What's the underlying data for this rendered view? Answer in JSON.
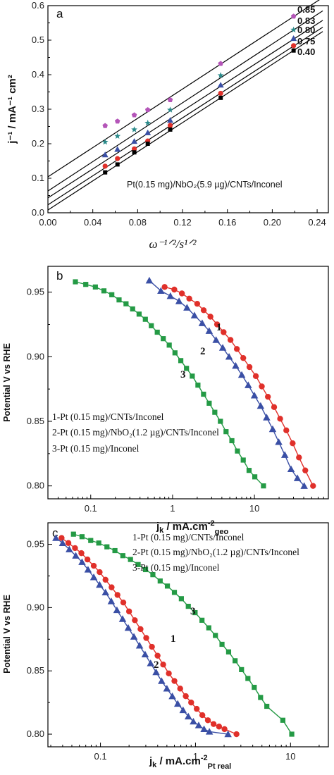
{
  "chart_data": [
    {
      "panel": "a",
      "type": "scatter",
      "xlabel": "ω^{-1/2}/s^{1/2}",
      "ylabel": "j^{-1} / mA^{-1} cm^{2}",
      "xlim": [
        0,
        0.25
      ],
      "ylim": [
        0,
        0.6
      ],
      "xticks": [
        "0.00",
        "0.04",
        "0.08",
        "0.12",
        "0.16",
        "0.20",
        "0.24"
      ],
      "yticks": [
        "0.0",
        "0.1",
        "0.2",
        "0.3",
        "0.4",
        "0.5",
        "0.6"
      ],
      "annotation": "Pt(0.15 mg)/NbO2(5.9 µg)/CNTs/Inconel",
      "x": [
        0.051,
        0.062,
        0.077,
        0.089,
        0.109,
        0.154,
        0.219
      ],
      "series": [
        {
          "name": "0.85",
          "marker": "pentagon",
          "color": "#b455b8",
          "values": [
            0.252,
            0.265,
            0.283,
            0.298,
            0.327,
            0.432,
            0.569
          ],
          "fit": {
            "intercept": 0.104,
            "slope": 2.12
          }
        },
        {
          "name": "0.83",
          "marker": "star",
          "color": "#2a8a8a",
          "values": [
            0.205,
            0.222,
            0.241,
            0.26,
            0.298,
            0.398,
            0.53
          ],
          "fit": {
            "intercept": 0.063,
            "slope": 2.13
          }
        },
        {
          "name": "0.80",
          "marker": "triangle",
          "color": "#3a4fa5",
          "values": [
            0.168,
            0.184,
            0.207,
            0.232,
            0.268,
            0.37,
            0.505
          ],
          "fit": {
            "intercept": 0.043,
            "slope": 2.1
          }
        },
        {
          "name": "0.75",
          "marker": "circle",
          "color": "#e0302a",
          "values": [
            0.135,
            0.157,
            0.185,
            0.208,
            0.253,
            0.346,
            0.484
          ],
          "fit": {
            "intercept": 0.023,
            "slope": 2.1
          }
        },
        {
          "name": "0.40",
          "marker": "square",
          "color": "#000000",
          "values": [
            0.117,
            0.14,
            0.175,
            0.2,
            0.241,
            0.333,
            0.47
          ],
          "fit": {
            "intercept": 0.008,
            "slope": 2.11
          }
        }
      ]
    },
    {
      "panel": "b",
      "type": "line",
      "xscale": "log",
      "xlabel": "jk / mA.cm-2geo",
      "ylabel": "Potential V vs RHE",
      "xlim": [
        0.03,
        80
      ],
      "ylim": [
        0.79,
        0.97
      ],
      "xticks": [
        "0.1",
        "1",
        "10"
      ],
      "yticks": [
        "0.80",
        "0.85",
        "0.90",
        "0.95"
      ],
      "legend": [
        "1-Pt (0.15 mg)/CNTs/Inconel",
        "2-Pt (0.15 mg)/NbO2(1.2 µg)/CNTs/Inconel",
        "3-Pt (0.15 mg)/Inconel"
      ],
      "series": [
        {
          "name": "1",
          "marker": "circle",
          "color": "#e0302a",
          "x": [
            0.8,
            1.05,
            1.3,
            1.6,
            2.0,
            2.4,
            2.9,
            3.5,
            4.2,
            5.1,
            6.1,
            7.3,
            8.7,
            10.4,
            12.3,
            14.6,
            17.4,
            20.6,
            24.5,
            29.3,
            35.0,
            41.8,
            52.0
          ],
          "y": [
            0.954,
            0.952,
            0.949,
            0.945,
            0.941,
            0.936,
            0.931,
            0.925,
            0.919,
            0.913,
            0.906,
            0.899,
            0.892,
            0.885,
            0.877,
            0.869,
            0.861,
            0.852,
            0.843,
            0.833,
            0.822,
            0.812,
            0.8
          ]
        },
        {
          "name": "2",
          "marker": "triangle",
          "color": "#3a4fa5",
          "x": [
            0.52,
            0.72,
            0.94,
            1.2,
            1.5,
            1.85,
            2.3,
            2.8,
            3.4,
            4.1,
            4.9,
            5.9,
            7.0,
            8.4,
            10.0,
            11.9,
            14.1,
            16.7,
            19.8,
            23.5,
            28.0,
            33.5,
            40.5
          ],
          "y": [
            0.959,
            0.951,
            0.947,
            0.943,
            0.938,
            0.932,
            0.926,
            0.92,
            0.913,
            0.907,
            0.9,
            0.893,
            0.886,
            0.878,
            0.87,
            0.862,
            0.853,
            0.844,
            0.834,
            0.824,
            0.813,
            0.806,
            0.8
          ]
        },
        {
          "name": "3",
          "marker": "square",
          "color": "#249a45",
          "x": [
            0.065,
            0.087,
            0.114,
            0.145,
            0.181,
            0.222,
            0.27,
            0.325,
            0.39,
            0.465,
            0.55,
            0.65,
            0.77,
            0.91,
            1.07,
            1.26,
            1.48,
            1.74,
            2.04,
            2.39,
            2.8,
            3.28,
            3.84,
            4.5,
            5.3,
            6.2,
            7.3,
            8.6,
            10.1,
            12.9
          ],
          "y": [
            0.958,
            0.956,
            0.954,
            0.951,
            0.948,
            0.944,
            0.941,
            0.937,
            0.933,
            0.929,
            0.924,
            0.919,
            0.914,
            0.909,
            0.903,
            0.897,
            0.891,
            0.885,
            0.878,
            0.871,
            0.864,
            0.857,
            0.85,
            0.842,
            0.835,
            0.827,
            0.82,
            0.812,
            0.807,
            0.8
          ]
        }
      ],
      "curve_labels": [
        "1",
        "2",
        "3"
      ]
    },
    {
      "panel": "c",
      "type": "line",
      "xscale": "log",
      "xlabel": "jk / mA.cm-2Pt real",
      "ylabel": "Potential V vs RHE",
      "xlim": [
        0.028,
        25
      ],
      "ylim": [
        0.79,
        0.967
      ],
      "xticks": [
        "0.1",
        "1",
        "10"
      ],
      "yticks": [
        "0.80",
        "0.85",
        "0.90",
        "0.95"
      ],
      "legend": [
        "1-Pt (0.15 mg)/CNTs/Inconel",
        "2-Pt (0.15 mg)/NbO2(1.2 µg)/CNTs/Inconel",
        "3-Pt (0.15 mg)/Inconel"
      ],
      "series": [
        {
          "name": "1",
          "marker": "circle",
          "color": "#e0302a",
          "x": [
            0.039,
            0.046,
            0.054,
            0.063,
            0.073,
            0.085,
            0.098,
            0.113,
            0.131,
            0.151,
            0.174,
            0.2,
            0.23,
            0.264,
            0.303,
            0.348,
            0.399,
            0.457,
            0.524,
            0.6,
            0.69,
            0.79,
            0.9,
            1.03,
            1.18,
            1.35,
            1.55,
            1.77,
            2.02,
            2.7
          ],
          "y": [
            0.955,
            0.951,
            0.947,
            0.943,
            0.938,
            0.933,
            0.928,
            0.922,
            0.916,
            0.91,
            0.904,
            0.897,
            0.89,
            0.883,
            0.876,
            0.869,
            0.862,
            0.855,
            0.848,
            0.842,
            0.836,
            0.83,
            0.825,
            0.82,
            0.815,
            0.811,
            0.808,
            0.806,
            0.804,
            0.8
          ]
        },
        {
          "name": "2",
          "marker": "triangle",
          "color": "#3a4fa5",
          "x": [
            0.034,
            0.04,
            0.047,
            0.055,
            0.064,
            0.074,
            0.085,
            0.098,
            0.113,
            0.13,
            0.149,
            0.171,
            0.196,
            0.225,
            0.258,
            0.295,
            0.337,
            0.385,
            0.44,
            0.5,
            0.57,
            0.65,
            0.74,
            0.84,
            0.95,
            1.08,
            1.23,
            1.4,
            2.2
          ],
          "y": [
            0.955,
            0.951,
            0.946,
            0.941,
            0.936,
            0.93,
            0.924,
            0.918,
            0.912,
            0.905,
            0.898,
            0.891,
            0.884,
            0.877,
            0.87,
            0.863,
            0.856,
            0.849,
            0.842,
            0.836,
            0.83,
            0.824,
            0.819,
            0.814,
            0.81,
            0.807,
            0.804,
            0.802,
            0.8
          ]
        },
        {
          "name": "3",
          "marker": "square",
          "color": "#249a45",
          "x": [
            0.052,
            0.064,
            0.079,
            0.096,
            0.117,
            0.142,
            0.172,
            0.207,
            0.249,
            0.298,
            0.356,
            0.425,
            0.506,
            0.6,
            0.71,
            0.84,
            0.99,
            1.17,
            1.38,
            1.62,
            1.9,
            2.23,
            2.61,
            3.05,
            3.56,
            4.15,
            4.84,
            5.63,
            8.3,
            10.3
          ],
          "y": [
            0.958,
            0.956,
            0.953,
            0.951,
            0.948,
            0.945,
            0.941,
            0.938,
            0.934,
            0.93,
            0.926,
            0.921,
            0.917,
            0.912,
            0.907,
            0.901,
            0.896,
            0.89,
            0.884,
            0.878,
            0.871,
            0.865,
            0.858,
            0.851,
            0.844,
            0.837,
            0.829,
            0.822,
            0.811,
            0.8
          ]
        }
      ],
      "curve_labels": [
        "1",
        "2",
        "3"
      ]
    }
  ],
  "labels": {
    "a": {
      "panel_letter": "a",
      "ylabel": "j⁻¹ / mA⁻¹ cm²",
      "xlabel": "ω⁻¹ᐟ²/s¹ᐟ²",
      "annotation": "Pt(0.15 mg)/NbO₂(5.9 µg)/CNTs/Inconel",
      "series_labels": [
        "0.85",
        "0.83",
        "0.80",
        "0.75",
        "0.40"
      ]
    },
    "b": {
      "panel_letter": "b",
      "ylabel": "Potential V vs RHE",
      "xlabel_main": "j",
      "xlabel_sub_k": "k",
      "xlabel_rest": " / mA.cm",
      "xlabel_sup": "-2",
      "xlabel_sub": "geo",
      "legend": [
        "1-Pt (0.15 mg)/CNTs/Inconel",
        "2-Pt (0.15 mg)/NbO₂(1.2 µg)/CNTs/Inconel",
        "3-Pt (0.15 mg)/Inconel"
      ],
      "curve_labels": [
        "1",
        "2",
        "3"
      ]
    },
    "c": {
      "panel_letter": "c",
      "ylabel": "Potential V vs RHE",
      "xlabel_main": "j",
      "xlabel_sub_k": "k",
      "xlabel_rest": " / mA.cm",
      "xlabel_sup": "-2",
      "xlabel_sub": "Pt real",
      "legend": [
        "1-Pt (0.15 mg)/CNTs/Inconel",
        "2-Pt (0.15 mg)/NbO₂(1.2 µg)/CNTs/Inconel",
        "3-Pt (0.15 mg)/Inconel"
      ],
      "curve_labels": [
        "1",
        "2",
        "3"
      ]
    }
  }
}
